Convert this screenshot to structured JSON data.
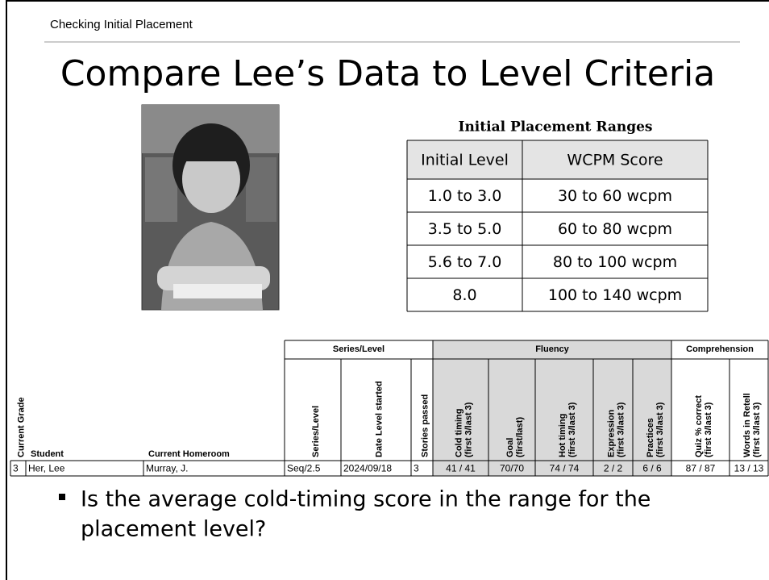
{
  "header": {
    "subtitle": "Checking Initial Placement",
    "title": "Compare Lee’s Data to Level Criteria"
  },
  "ranges": {
    "title": "Initial Placement Ranges",
    "headers": [
      "Initial Level",
      "WCPM Score"
    ],
    "rows": [
      [
        "1.0 to 3.0",
        "30 to 60 wcpm"
      ],
      [
        "3.5 to 5.0",
        "60 to 80 wcpm"
      ],
      [
        "5.6 to 7.0",
        "80 to 100 wcpm"
      ],
      [
        "8.0",
        "100 to 140 wcpm"
      ]
    ]
  },
  "student_table": {
    "groups": [
      "Series/Level",
      "Fluency",
      "Comprehension"
    ],
    "columns": [
      [
        "Current Grade"
      ],
      [
        "Student"
      ],
      [
        "Current Homeroom"
      ],
      [
        "Series/Level"
      ],
      [
        "Date Level started"
      ],
      [
        "Stories passed"
      ],
      [
        "Cold timing",
        "(first 3/last 3)"
      ],
      [
        "Goal",
        "(first/last)"
      ],
      [
        "Hot timing",
        "(first 3/last 3)"
      ],
      [
        "Expression",
        "(first 3/last 3)"
      ],
      [
        "Practices",
        "(first 3/last 3)"
      ],
      [
        "Quiz % correct",
        "(first 3/last 3)"
      ],
      [
        "Words in Retell",
        "(first 3/last 3)"
      ]
    ],
    "row": [
      "3",
      "Her, Lee",
      "Murray, J.",
      "Seq/2.5",
      "2024/09/18",
      "3",
      "41 / 41",
      "70/70",
      "74 / 74",
      "2 / 2",
      "6 / 6",
      "87 / 87",
      "13 / 13"
    ]
  },
  "bullet": {
    "lines": [
      "Is the average cold-timing score in the range for the",
      "placement level?"
    ]
  }
}
